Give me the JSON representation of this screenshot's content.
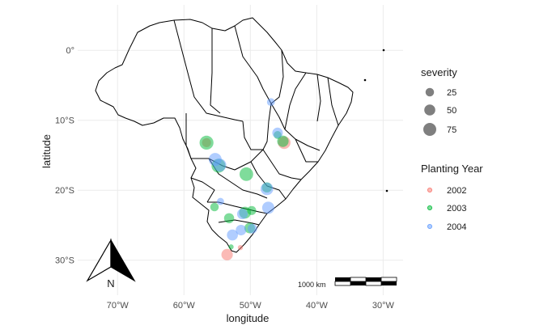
{
  "chart_data": {
    "type": "scatter",
    "xlabel": "longitude",
    "ylabel": "latitude",
    "xlim": [
      -76,
      -27
    ],
    "ylim": [
      -35,
      6.5
    ],
    "x_ticks": [
      {
        "value": -70,
        "label": "70°W"
      },
      {
        "value": -60,
        "label": "60°W"
      },
      {
        "value": -50,
        "label": "50°W"
      },
      {
        "value": -40,
        "label": "40°W"
      },
      {
        "value": -30,
        "label": "30°W"
      }
    ],
    "y_ticks": [
      {
        "value": 0,
        "label": "0°"
      },
      {
        "value": -10,
        "label": "10°S"
      },
      {
        "value": -20,
        "label": "20°S"
      },
      {
        "value": -30,
        "label": "30°S"
      }
    ],
    "grid": true,
    "legend_position": "right",
    "size_legend": {
      "title": "severity",
      "entries": [
        {
          "value": 25,
          "label": "25"
        },
        {
          "value": 50,
          "label": "50"
        },
        {
          "value": 75,
          "label": "75"
        }
      ]
    },
    "color_legend": {
      "title": "Planting Year",
      "entries": [
        {
          "label": "2002",
          "color": "#F8766D"
        },
        {
          "label": "2003",
          "color": "#00BA38"
        },
        {
          "label": "2004",
          "color": "#619CFF"
        }
      ]
    },
    "series": [
      {
        "name": "2002",
        "color": "#F8766D",
        "points": [
          {
            "x": -44.9,
            "y": -13.2,
            "severity": 70
          },
          {
            "x": -53.5,
            "y": -29.2,
            "severity": 55
          },
          {
            "x": -51.5,
            "y": -28.2,
            "severity": 5
          },
          {
            "x": -56.6,
            "y": -13.2,
            "severity": 30
          }
        ]
      },
      {
        "name": "2003",
        "color": "#00BA38",
        "points": [
          {
            "x": -56.6,
            "y": -13.2,
            "severity": 90
          },
          {
            "x": -54.8,
            "y": -16.5,
            "severity": 90
          },
          {
            "x": -50.6,
            "y": -17.7,
            "severity": 85
          },
          {
            "x": -50.8,
            "y": -23.2,
            "severity": 60
          },
          {
            "x": -53.2,
            "y": -24.0,
            "severity": 40
          },
          {
            "x": -49.8,
            "y": -22.9,
            "severity": 30
          },
          {
            "x": -55.4,
            "y": -22.4,
            "severity": 25
          },
          {
            "x": -50.1,
            "y": -25.4,
            "severity": 45
          },
          {
            "x": -45.1,
            "y": -13.0,
            "severity": 55
          },
          {
            "x": -45.9,
            "y": -12.1,
            "severity": 20
          },
          {
            "x": -47.5,
            "y": -19.6,
            "severity": 40
          },
          {
            "x": -52.9,
            "y": -28.1,
            "severity": 5
          }
        ]
      },
      {
        "name": "2004",
        "color": "#619CFF",
        "points": [
          {
            "x": -55.3,
            "y": -15.6,
            "severity": 75
          },
          {
            "x": -54.6,
            "y": -16.4,
            "severity": 75
          },
          {
            "x": -47.5,
            "y": -19.8,
            "severity": 70
          },
          {
            "x": -47.3,
            "y": -22.5,
            "severity": 65
          },
          {
            "x": -45.9,
            "y": -11.8,
            "severity": 45
          },
          {
            "x": -46.9,
            "y": -7.4,
            "severity": 20
          },
          {
            "x": -52.7,
            "y": -26.4,
            "severity": 50
          },
          {
            "x": -51.4,
            "y": -25.7,
            "severity": 45
          },
          {
            "x": -51.2,
            "y": -23.4,
            "severity": 45
          },
          {
            "x": -54.5,
            "y": -21.6,
            "severity": 15
          },
          {
            "x": -49.7,
            "y": -25.5,
            "severity": 35
          }
        ]
      }
    ]
  },
  "map": {
    "north_arrow_label": "N",
    "scale_bar_label": "1000 km"
  }
}
